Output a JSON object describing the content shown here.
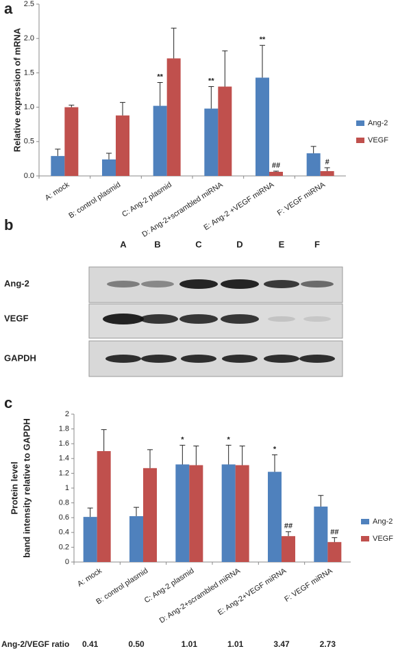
{
  "panels": [
    "a",
    "b",
    "c"
  ],
  "chart_data": [
    {
      "type": "bar",
      "ylabel": [
        "Relative expression of mRNA"
      ],
      "categories": [
        "A: mock",
        "B: control  plasmid",
        "C: Ang-2 plasmid",
        "D: Ang-2+scrambled miRNA",
        "E: Ang-2 +VEGF miRNA",
        "F: VEGF miRNA"
      ],
      "series": [
        {
          "name": "Ang-2",
          "color": "#4f81bd",
          "values": [
            0.29,
            0.24,
            1.02,
            0.98,
            1.43,
            0.33
          ],
          "errors": [
            0.1,
            0.09,
            0.34,
            0.32,
            0.47,
            0.1
          ],
          "annotations": [
            null,
            null,
            "**",
            "**",
            "**",
            null
          ]
        },
        {
          "name": "VEGF",
          "color": "#c0504d",
          "values": [
            1.0,
            0.88,
            1.71,
            1.3,
            0.06,
            0.07
          ],
          "errors": [
            0.03,
            0.19,
            0.44,
            0.52,
            0.01,
            0.05
          ],
          "annotations": [
            null,
            null,
            null,
            null,
            "##",
            "#"
          ]
        }
      ],
      "ylim": [
        0,
        2.5
      ],
      "yticks": [
        {
          "value": 0,
          "label": "0.0"
        },
        0.5,
        {
          "value": 1,
          "label": "1.0"
        },
        1.5,
        {
          "value": 2,
          "label": "2.0"
        },
        2.5
      ],
      "legend": "right"
    },
    {
      "type": "bar",
      "ylabel": [
        "Protein level",
        "band intensity relative to GAPDH"
      ],
      "categories": [
        "A: mock",
        "B: control plasmid",
        "C: Ang-2 plasmid",
        "D: Ang-2+scrambled miRNA",
        "E: Ang-2+VEGF miRNA",
        "F: VEGF miRNA"
      ],
      "series": [
        {
          "name": "Ang-2",
          "color": "#4f81bd",
          "values": [
            0.61,
            0.62,
            1.32,
            1.32,
            1.22,
            0.75
          ],
          "errors": [
            0.12,
            0.12,
            0.26,
            0.26,
            0.23,
            0.15
          ],
          "annotations": [
            null,
            null,
            "*",
            "*",
            "*",
            null
          ]
        },
        {
          "name": "VEGF",
          "color": "#c0504d",
          "values": [
            1.5,
            1.27,
            1.31,
            1.31,
            0.35,
            0.27
          ],
          "errors": [
            0.29,
            0.25,
            0.26,
            0.26,
            0.06,
            0.06
          ],
          "annotations": [
            null,
            null,
            null,
            null,
            "##",
            "##"
          ]
        }
      ],
      "ylim": [
        0,
        2
      ],
      "yticks": [
        0,
        0.2,
        0.4,
        0.6,
        0.8,
        1,
        1.2,
        1.4,
        1.6,
        1.8,
        2
      ],
      "legend": "right"
    }
  ],
  "blot": {
    "lanes": [
      "A",
      "B",
      "C",
      "D",
      "E",
      "F"
    ],
    "rows": [
      "Ang-2",
      "VEGF",
      "GAPDH"
    ]
  },
  "ratio": {
    "label": "Ang-2/VEGF ratio",
    "values": [
      "0.41",
      "0.50",
      "1.01",
      "1.01",
      "3.47",
      "2.73"
    ]
  }
}
